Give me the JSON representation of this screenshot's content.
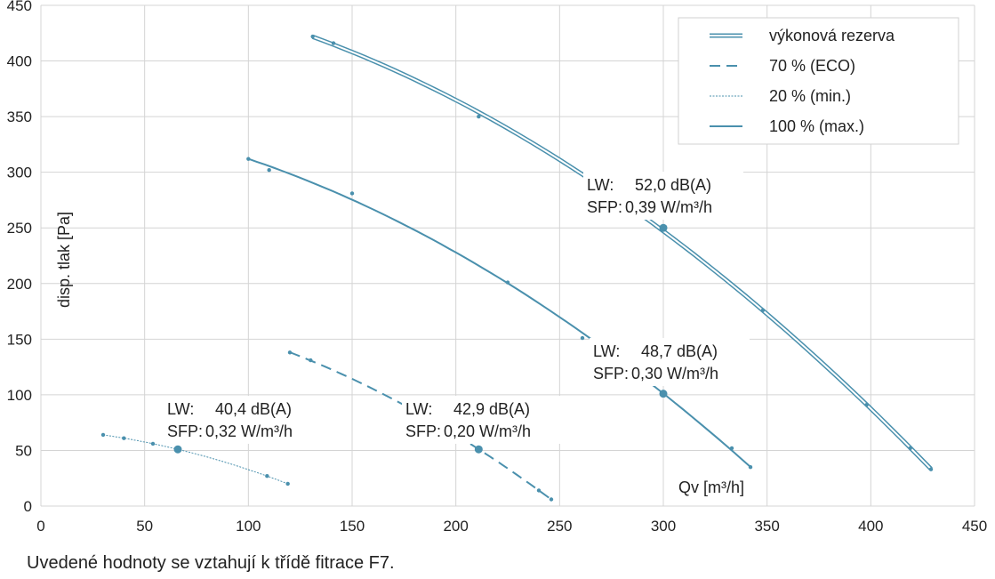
{
  "chart_data": {
    "type": "line",
    "xlabel": "Qv [m³/h]",
    "ylabel": "disp. tlak [Pa]",
    "xlim": [
      0,
      450
    ],
    "ylim": [
      0,
      450
    ],
    "xticks": [
      0,
      50,
      100,
      150,
      200,
      250,
      300,
      350,
      400,
      450
    ],
    "yticks": [
      0,
      50,
      100,
      150,
      200,
      250,
      300,
      350,
      400,
      450
    ],
    "grid": true,
    "legend_position": "top-right",
    "color": "#4a90ad",
    "legend": [
      {
        "label": "výkonová rezerva",
        "style": "double"
      },
      {
        "label": "70 % (ECO)",
        "style": "dashed"
      },
      {
        "label": "20 % (min.)",
        "style": "dotted"
      },
      {
        "label": "100 % (max.)",
        "style": "solid"
      }
    ],
    "series": [
      {
        "name": "výkonová rezerva",
        "style": "double",
        "x": [
          131,
          141,
          211,
          300,
          348,
          398,
          419,
          429
        ],
        "y": [
          422,
          416,
          350,
          250,
          176,
          91,
          52,
          33
        ]
      },
      {
        "name": "100 % (max.)",
        "style": "solid",
        "x": [
          100,
          110,
          150,
          225,
          261,
          300,
          333,
          342
        ],
        "y": [
          312,
          302,
          281,
          201,
          151,
          101,
          52,
          35
        ]
      },
      {
        "name": "70 % (ECO)",
        "style": "dashed",
        "x": [
          120,
          130,
          211,
          240,
          246
        ],
        "y": [
          138,
          131,
          51,
          14,
          6
        ]
      },
      {
        "name": "20 % (min.)",
        "style": "dotted",
        "x": [
          30,
          40,
          54,
          66,
          109,
          119
        ],
        "y": [
          64,
          61,
          56,
          51,
          27,
          20
        ]
      }
    ],
    "markers": [
      {
        "x": 300,
        "y": 250
      },
      {
        "x": 300,
        "y": 101
      },
      {
        "x": 211,
        "y": 51
      },
      {
        "x": 66,
        "y": 51
      }
    ],
    "annotations": [
      {
        "lw_label": "LW:",
        "lw_value": "52,0 dB(A)",
        "sfp_label": "SFP:",
        "sfp_value": "0,39 W/m³/h"
      },
      {
        "lw_label": "LW:",
        "lw_value": "48,7 dB(A)",
        "sfp_label": "SFP:",
        "sfp_value": "0,30 W/m³/h"
      },
      {
        "lw_label": "LW:",
        "lw_value": "42,9 dB(A)",
        "sfp_label": "SFP:",
        "sfp_value": "0,20 W/m³/h"
      },
      {
        "lw_label": "LW:",
        "lw_value": "40,4 dB(A)",
        "sfp_label": "SFP:",
        "sfp_value": "0,32 W/m³/h"
      }
    ]
  },
  "footnote": "Uvedené hodnoty se vztahují k třídě fitrace F7."
}
